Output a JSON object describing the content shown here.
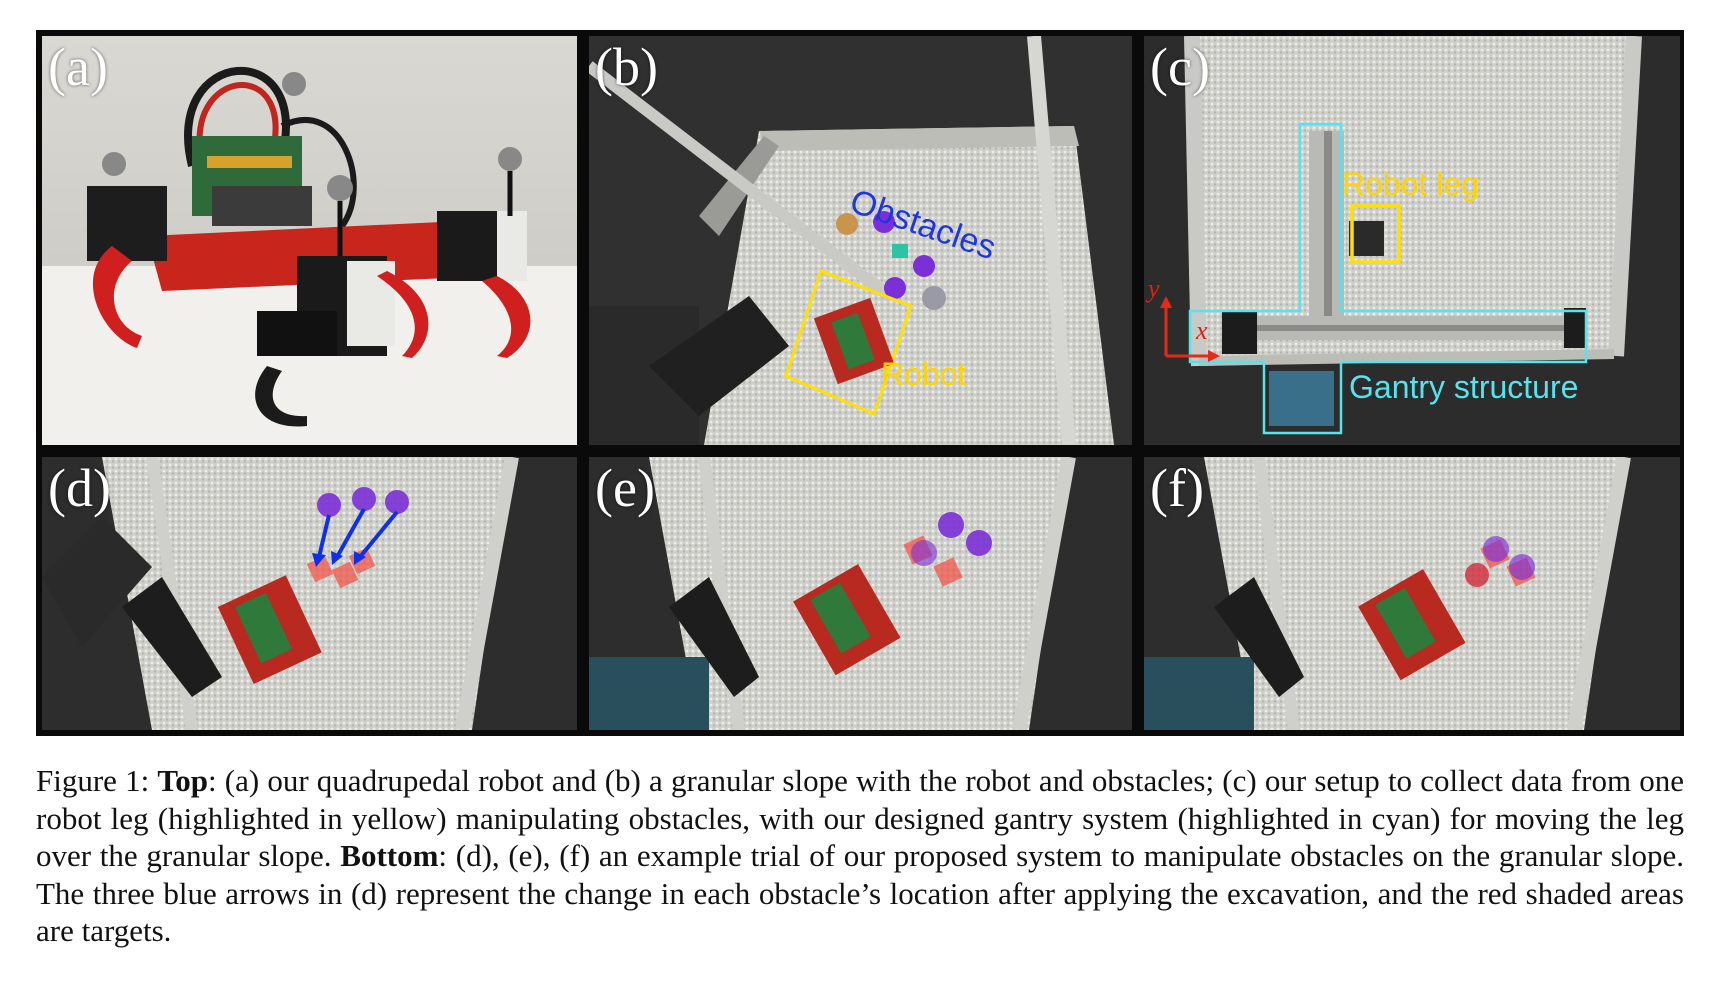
{
  "figure": {
    "panels": {
      "a": {
        "label": "(a)"
      },
      "b": {
        "label": "(b)",
        "obstacles_label": "Obstacles",
        "robot_label": "Robot"
      },
      "c": {
        "label": "(c)",
        "robot_leg_label": "Robot leg",
        "gantry_label": "Gantry structure",
        "axis_y": "y",
        "axis_x": "x"
      },
      "d": {
        "label": "(d)"
      },
      "e": {
        "label": "(e)"
      },
      "f": {
        "label": "(f)"
      }
    },
    "colors": {
      "frame": "#0a0a0a",
      "obstacle_purple": "#7a2fd0",
      "target_red": "#f0564a",
      "arrow_blue": "#1030e8",
      "yellow_box": "#ffe000",
      "cyan_box": "#56e3ee"
    },
    "caption": {
      "prefix": "Figure 1: ",
      "top_label": "Top",
      "top_text": ": (a) our quadrupedal robot and (b) a granular slope with the robot and obstacles; (c) our setup to collect data from one robot leg (highlighted in yellow) manipulating obstacles, with our designed gantry system (highlighted in cyan) for moving the leg over the granular slope. ",
      "bottom_label": "Bottom",
      "bottom_text": ": (d), (e), (f) an example trial of our proposed system to manipulate obstacles on the granular slope. The three blue arrows in (d) represent the change in each obstacle’s location after applying the excavation, and the red shaded areas are targets."
    }
  }
}
